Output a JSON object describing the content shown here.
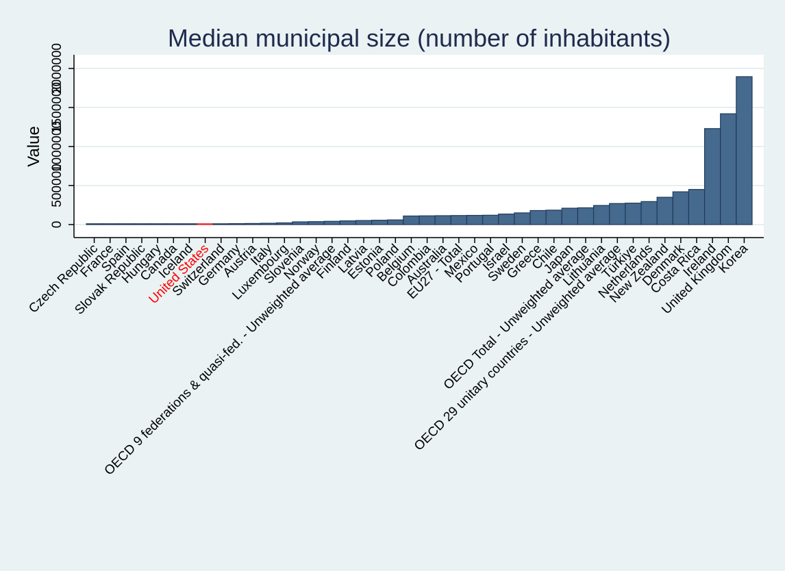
{
  "chart_data": {
    "type": "bar",
    "title": "Median municipal size (number of inhabitants)",
    "xlabel": "",
    "ylabel": "Value",
    "ylim": [
      0,
      2000000
    ],
    "yticks": [
      0,
      500000,
      1000000,
      1500000,
      2000000
    ],
    "ytick_labels": [
      "0",
      "500000",
      "1000000",
      "1500000",
      "2000000"
    ],
    "grid": true,
    "legend": "none",
    "colors": {
      "bar_fill": "#46698e",
      "bar_stroke": "#1f3b5a",
      "highlight_bar": "#e8262a",
      "highlight_label": "#ff0000",
      "label": "#000000",
      "plot_background": "#ffffff",
      "page_background": "#eaf2f3",
      "grid": "#e6eef0",
      "title": "#1e2b4d"
    },
    "highlight_category": "United States",
    "categories": [
      "Czech Republic",
      "France",
      "Spain",
      "Slovak Republic",
      "Hungary",
      "Canada",
      "Iceland",
      "United States",
      "Switzerland",
      "Germany",
      "Austria",
      "Italy",
      "Luxembourg",
      "Slovenia",
      "Norway",
      "OECD 9 federations & quasi-fed. - Unweighted average",
      "Finland",
      "Latvia",
      "Estonia",
      "Poland",
      "Belgium",
      "Colombia",
      "Australia",
      "EU27 - Total",
      "Mexico",
      "Portugal",
      "Israel",
      "Sweden",
      "Greece",
      "Chile",
      "Japan",
      "OECD Total - Unweighted average",
      "Lithuania",
      "OECD 29 unitary countries - Unweighted average",
      "Türkiye",
      "Netherlands",
      "New Zealand",
      "Denmark",
      "Costa Rica",
      "Ireland",
      "United Kingdom",
      "Korea"
    ],
    "values": [
      2000,
      3000,
      4000,
      5000,
      6000,
      7000,
      8000,
      9000,
      10000,
      12000,
      14000,
      17000,
      22000,
      35000,
      38000,
      42000,
      48000,
      52000,
      56000,
      60000,
      110000,
      112000,
      114000,
      116000,
      118000,
      120000,
      135000,
      150000,
      180000,
      185000,
      210000,
      215000,
      245000,
      270000,
      275000,
      295000,
      350000,
      420000,
      450000,
      1230000,
      1420000,
      1895000
    ]
  }
}
